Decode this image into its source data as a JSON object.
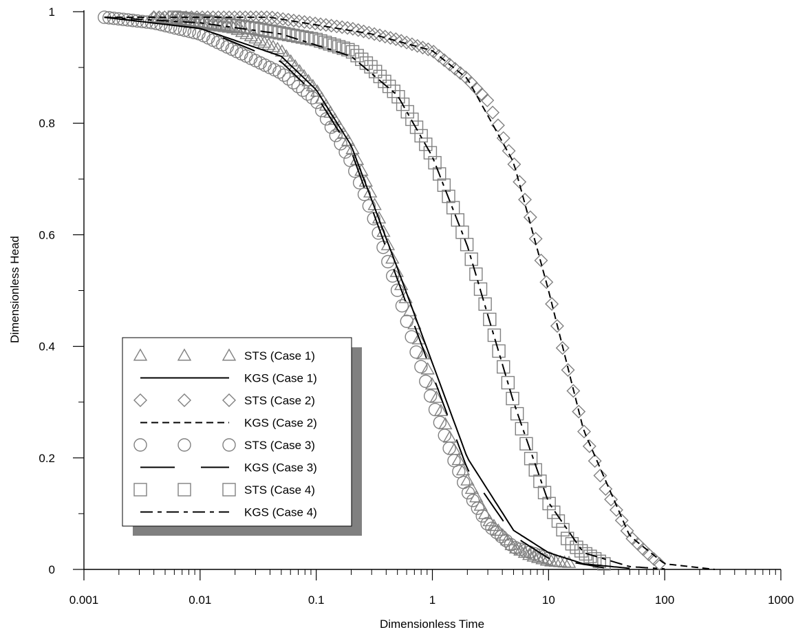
{
  "chart_data": {
    "type": "line",
    "xlabel": "Dimensionless Time",
    "ylabel": "Dimensionless Head",
    "xscale": "log",
    "xlim": [
      0.001,
      1000
    ],
    "ylim": [
      0,
      1
    ],
    "x_ticks": [
      "0.001",
      "0.01",
      "0.1",
      "1",
      "10",
      "100",
      "1000"
    ],
    "y_ticks": [
      "0",
      "0.2",
      "0.4",
      "0.6",
      "0.8",
      "1"
    ],
    "grid": false,
    "legend_position": "lower-left",
    "series": [
      {
        "name": "STS (Case 1)",
        "kind": "markers",
        "marker": "triangle",
        "color": "#808080",
        "x": [
          0.004,
          0.02,
          0.05,
          0.1,
          0.2,
          0.3,
          0.5,
          0.7,
          1.0,
          1.5,
          2.0,
          3.0,
          5.0,
          7.0,
          10.0,
          15.0
        ],
        "y": [
          0.99,
          0.97,
          0.93,
          0.86,
          0.76,
          0.67,
          0.53,
          0.44,
          0.33,
          0.22,
          0.16,
          0.09,
          0.04,
          0.025,
          0.015,
          0.012
        ]
      },
      {
        "name": "KGS (Case 1)",
        "kind": "line",
        "dash": "solid",
        "color": "#000000",
        "x": [
          0.0015,
          0.01,
          0.05,
          0.1,
          0.2,
          0.5,
          1.0,
          2.0,
          5.0,
          10.0,
          20.0,
          50.0
        ],
        "y": [
          0.99,
          0.97,
          0.92,
          0.86,
          0.76,
          0.54,
          0.37,
          0.2,
          0.07,
          0.03,
          0.01,
          0.002
        ]
      },
      {
        "name": "STS (Case 2)",
        "kind": "markers",
        "marker": "diamond",
        "color": "#808080",
        "x": [
          0.004,
          0.04,
          0.2,
          0.5,
          1.0,
          2.0,
          3.0,
          5.0,
          7.0,
          10.0,
          15.0,
          20.0,
          30.0,
          50.0,
          70.0,
          90.0
        ],
        "y": [
          0.99,
          0.99,
          0.97,
          0.95,
          0.93,
          0.88,
          0.84,
          0.73,
          0.63,
          0.5,
          0.35,
          0.25,
          0.15,
          0.06,
          0.03,
          0.01
        ]
      },
      {
        "name": "KGS (Case 2)",
        "kind": "line",
        "dash": "dashed",
        "color": "#000000",
        "x": [
          0.0015,
          0.04,
          0.3,
          1.0,
          2.0,
          5.0,
          10.0,
          20.0,
          50.0,
          100.0,
          270.0
        ],
        "y": [
          0.99,
          0.99,
          0.96,
          0.93,
          0.88,
          0.73,
          0.5,
          0.25,
          0.06,
          0.01,
          0.0
        ]
      },
      {
        "name": "STS (Case 3)",
        "kind": "markers",
        "marker": "circle",
        "color": "#808080",
        "x": [
          0.0015,
          0.004,
          0.01,
          0.02,
          0.05,
          0.1,
          0.2,
          0.3,
          0.5,
          0.7,
          1.0,
          1.5,
          2.0,
          3.0,
          5.0,
          10.0
        ],
        "y": [
          0.99,
          0.98,
          0.96,
          0.93,
          0.89,
          0.84,
          0.73,
          0.64,
          0.5,
          0.4,
          0.3,
          0.2,
          0.14,
          0.08,
          0.04,
          0.02
        ]
      },
      {
        "name": "KGS (Case 3)",
        "kind": "line",
        "dash": "long-dash",
        "color": "#000000",
        "x": [
          0.0015,
          0.01,
          0.05,
          0.1,
          0.2,
          0.5,
          1.0,
          2.0,
          5.0,
          10.0,
          30.0
        ],
        "y": [
          0.99,
          0.97,
          0.91,
          0.85,
          0.75,
          0.52,
          0.35,
          0.18,
          0.06,
          0.02,
          0.003
        ]
      },
      {
        "name": "STS (Case 4)",
        "kind": "markers",
        "marker": "square",
        "color": "#808080",
        "x": [
          0.006,
          0.03,
          0.1,
          0.2,
          0.3,
          0.5,
          0.7,
          1.0,
          1.5,
          2.0,
          3.0,
          5.0,
          7.0,
          10.0,
          15.0,
          20.0,
          30.0
        ],
        "y": [
          0.99,
          0.97,
          0.95,
          0.93,
          0.9,
          0.85,
          0.8,
          0.74,
          0.65,
          0.58,
          0.46,
          0.3,
          0.2,
          0.12,
          0.05,
          0.03,
          0.01
        ]
      },
      {
        "name": "KGS (Case 4)",
        "kind": "line",
        "dash": "dash-dot",
        "color": "#000000",
        "x": [
          0.0015,
          0.01,
          0.05,
          0.2,
          0.5,
          1.0,
          2.0,
          5.0,
          10.0,
          20.0,
          50.0,
          100.0
        ],
        "y": [
          0.99,
          0.98,
          0.96,
          0.92,
          0.85,
          0.74,
          0.58,
          0.3,
          0.12,
          0.03,
          0.005,
          0.001
        ]
      }
    ]
  }
}
